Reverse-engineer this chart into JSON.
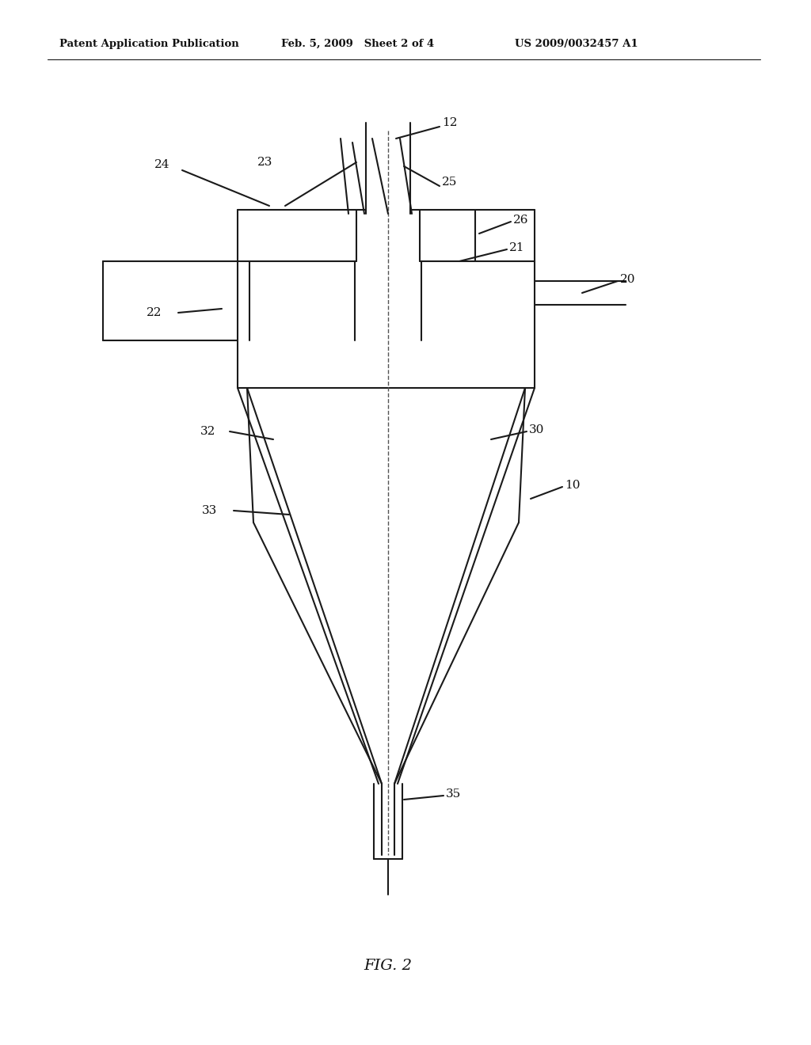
{
  "bg_color": "#ffffff",
  "header_left": "Patent Application Publication",
  "header_mid": "Feb. 5, 2009   Sheet 2 of 4",
  "header_right": "US 2009/0032457 A1",
  "fig_label": "FIG. 2",
  "line_color": "#1a1a1a",
  "dashed_line_color": "#555555",
  "label_fontsize": 11,
  "header_fontsize": 9.5
}
